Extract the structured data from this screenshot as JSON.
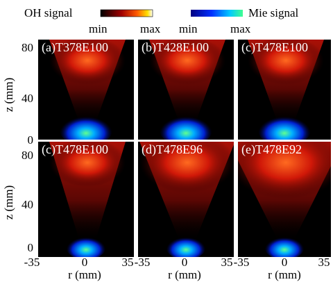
{
  "legend": {
    "oh_label": "OH signal",
    "oh_min": "min",
    "oh_max": "max",
    "mie_label": "Mie signal",
    "mie_min": "min",
    "mie_max": "max"
  },
  "panels": [
    {
      "label": "(a)T378E100"
    },
    {
      "label": "(b)T428E100"
    },
    {
      "label": "(c)T478E100"
    },
    {
      "label": "(c)T478E100"
    },
    {
      "label": "(d)T478E96"
    },
    {
      "label": "(e)T478E92"
    }
  ],
  "axes": {
    "y_label": "z (mm)",
    "x_label": "r (mm)",
    "y_ticks": [
      80,
      40,
      0
    ],
    "x_ticks": [
      -35,
      0,
      35
    ]
  }
}
